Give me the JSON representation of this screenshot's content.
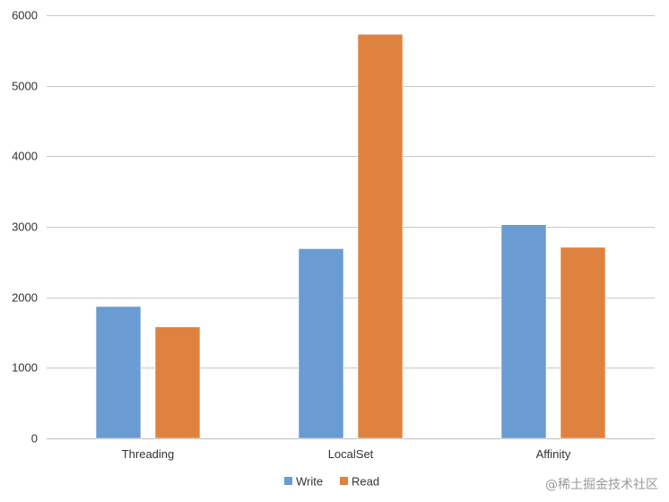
{
  "chart_data": {
    "type": "bar",
    "categories": [
      "Threading",
      "LocalSet",
      "Affinity"
    ],
    "series": [
      {
        "name": "Write",
        "color": "#6a9bd2",
        "values": [
          1870,
          2690,
          3030
        ]
      },
      {
        "name": "Read",
        "color": "#e0823f",
        "values": [
          1580,
          5730,
          2710
        ]
      }
    ],
    "ylim": [
      0,
      6000
    ],
    "yticks": [
      0,
      1000,
      2000,
      3000,
      4000,
      5000,
      6000
    ],
    "grid": true,
    "legend_position": "bottom-center"
  },
  "watermark": "@稀土掘金技术社区"
}
